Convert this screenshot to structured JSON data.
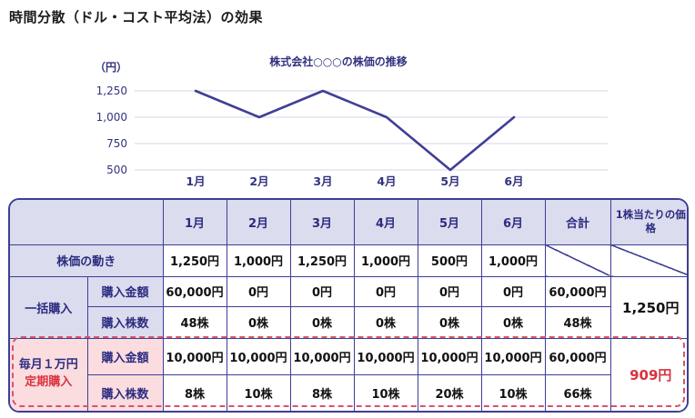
{
  "page_title": "時間分散（ドル・コスト平均法）の効果",
  "colors": {
    "line": "#3f3f96",
    "grid": "#e3e3ee",
    "border_navy": "#3e3e96",
    "header_lavender": "#dbdcee",
    "pink_bg": "#fbdde0",
    "dashed_red": "#d9536a",
    "accent_red": "#d9333f",
    "navy_text": "#2c2c80"
  },
  "chart_data": {
    "type": "line",
    "title": "株式会社○○○の株価の推移",
    "ylabel": "（円）",
    "x": [
      "1月",
      "2月",
      "3月",
      "4月",
      "5月",
      "6月"
    ],
    "values": [
      1250,
      1000,
      1250,
      1000,
      500,
      1000
    ],
    "ylim": [
      500,
      1250
    ],
    "yticks": [
      1250,
      1000,
      750,
      500
    ],
    "grid": true,
    "legend": "none"
  },
  "table": {
    "header": {
      "months": [
        "1月",
        "2月",
        "3月",
        "4月",
        "5月",
        "6月"
      ],
      "total": "合計",
      "per_share": "1株当たりの価格"
    },
    "price_row": {
      "label": "株価の動き",
      "values": [
        "1,250円",
        "1,000円",
        "1,250円",
        "1,000円",
        "500円",
        "1,000円"
      ]
    },
    "lump": {
      "label": "一括購入",
      "amount_label": "購入金額",
      "amounts": [
        "60,000円",
        "0円",
        "0円",
        "0円",
        "0円",
        "0円",
        "60,000円"
      ],
      "shares_label": "購入株数",
      "shares": [
        "48株",
        "0株",
        "0株",
        "0株",
        "0株",
        "0株",
        "48株"
      ],
      "per_share": "1,250円"
    },
    "monthly": {
      "label_line1": "毎月１万円",
      "label_line2": "定期購入",
      "amount_label": "購入金額",
      "amounts": [
        "10,000円",
        "10,000円",
        "10,000円",
        "10,000円",
        "10,000円",
        "10,000円",
        "60,000円"
      ],
      "shares_label": "購入株数",
      "shares": [
        "8株",
        "10株",
        "8株",
        "10株",
        "20株",
        "10株",
        "66株"
      ],
      "per_share": "909円"
    }
  }
}
